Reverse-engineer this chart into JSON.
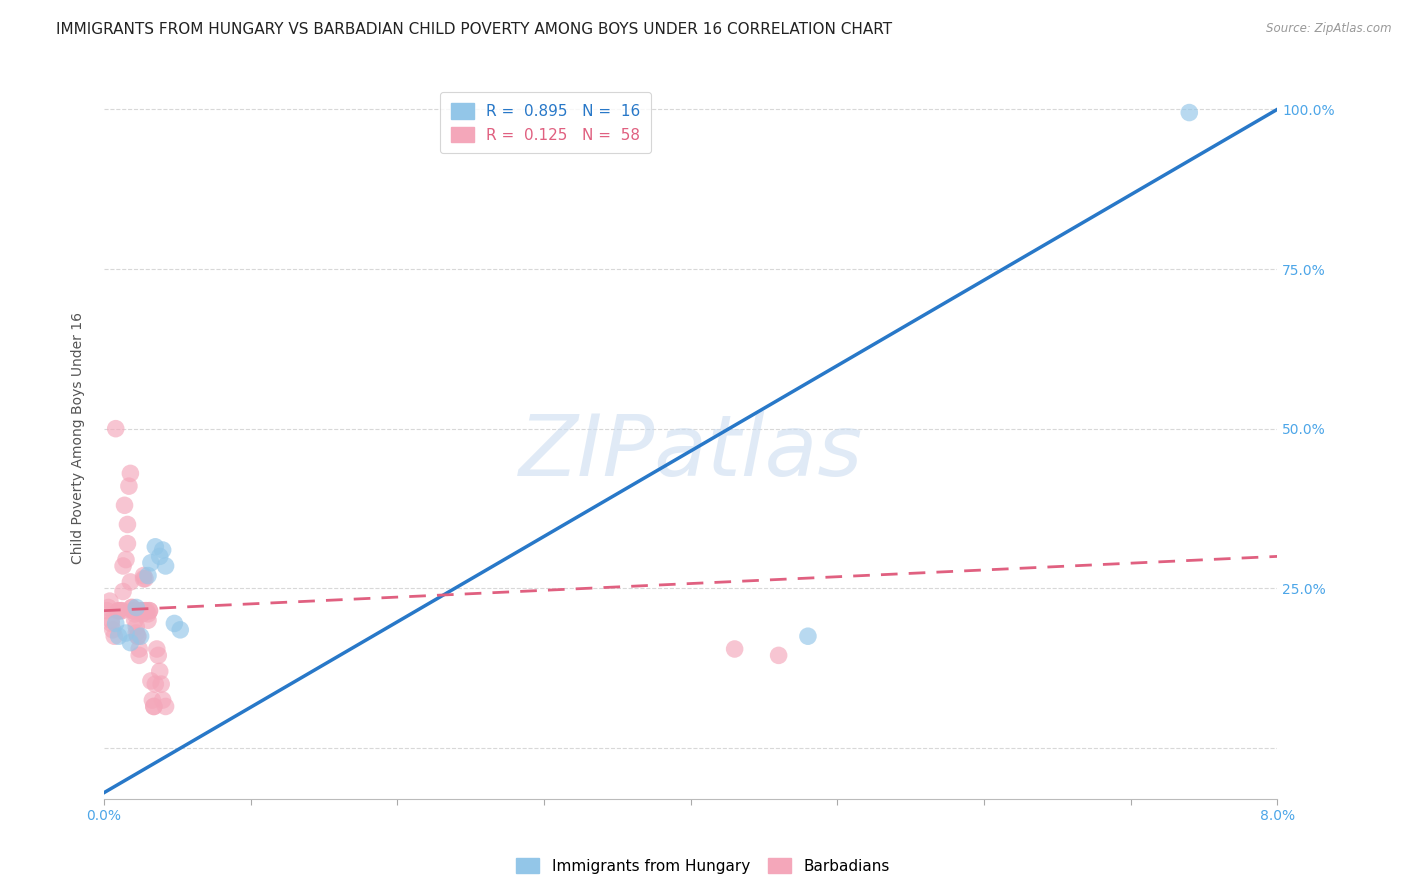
{
  "title": "IMMIGRANTS FROM HUNGARY VS BARBADIAN CHILD POVERTY AMONG BOYS UNDER 16 CORRELATION CHART",
  "source": "Source: ZipAtlas.com",
  "ylabel": "Child Poverty Among Boys Under 16",
  "x_ticks": [
    0.0,
    0.01,
    0.02,
    0.03,
    0.04,
    0.05,
    0.06,
    0.07,
    0.08
  ],
  "x_tick_labels": [
    "0.0%",
    "",
    "",
    "",
    "",
    "",
    "",
    "",
    "8.0%"
  ],
  "y_ticks": [
    0.0,
    0.25,
    0.5,
    0.75,
    1.0
  ],
  "y_tick_labels_right": [
    "",
    "25.0%",
    "50.0%",
    "75.0%",
    "100.0%"
  ],
  "xlim": [
    0.0,
    0.08
  ],
  "ylim": [
    -0.08,
    1.05
  ],
  "legend_hungary": "Immigrants from Hungary",
  "legend_barbadians": "Barbadians",
  "r_hungary": "0.895",
  "n_hungary": "16",
  "r_barbadians": "0.125",
  "n_barbadians": "58",
  "blue_color": "#93c6e8",
  "pink_color": "#f4a7ba",
  "blue_line_color": "#2878c8",
  "pink_line_color": "#e06080",
  "watermark": "ZIPatlas",
  "hungary_points": [
    [
      0.0008,
      0.195
    ],
    [
      0.001,
      0.175
    ],
    [
      0.0015,
      0.18
    ],
    [
      0.0018,
      0.165
    ],
    [
      0.0022,
      0.22
    ],
    [
      0.0025,
      0.175
    ],
    [
      0.003,
      0.27
    ],
    [
      0.0032,
      0.29
    ],
    [
      0.0035,
      0.315
    ],
    [
      0.0038,
      0.3
    ],
    [
      0.004,
      0.31
    ],
    [
      0.0042,
      0.285
    ],
    [
      0.0048,
      0.195
    ],
    [
      0.0052,
      0.185
    ],
    [
      0.048,
      0.175
    ],
    [
      0.074,
      0.995
    ]
  ],
  "barbadian_points": [
    [
      0.0002,
      0.215
    ],
    [
      0.0003,
      0.22
    ],
    [
      0.0004,
      0.23
    ],
    [
      0.0005,
      0.2
    ],
    [
      0.0005,
      0.195
    ],
    [
      0.0006,
      0.185
    ],
    [
      0.0007,
      0.175
    ],
    [
      0.0008,
      0.5
    ],
    [
      0.001,
      0.215
    ],
    [
      0.001,
      0.215
    ],
    [
      0.0012,
      0.215
    ],
    [
      0.0012,
      0.215
    ],
    [
      0.0013,
      0.285
    ],
    [
      0.0013,
      0.245
    ],
    [
      0.0014,
      0.38
    ],
    [
      0.0015,
      0.295
    ],
    [
      0.0016,
      0.35
    ],
    [
      0.0016,
      0.32
    ],
    [
      0.0017,
      0.41
    ],
    [
      0.0018,
      0.43
    ],
    [
      0.0018,
      0.26
    ],
    [
      0.0019,
      0.22
    ],
    [
      0.0019,
      0.22
    ],
    [
      0.002,
      0.215
    ],
    [
      0.002,
      0.215
    ],
    [
      0.0021,
      0.21
    ],
    [
      0.0021,
      0.2
    ],
    [
      0.0022,
      0.19
    ],
    [
      0.0022,
      0.18
    ],
    [
      0.0023,
      0.175
    ],
    [
      0.0023,
      0.175
    ],
    [
      0.0024,
      0.155
    ],
    [
      0.0024,
      0.145
    ],
    [
      0.0025,
      0.215
    ],
    [
      0.0026,
      0.215
    ],
    [
      0.0026,
      0.21
    ],
    [
      0.0027,
      0.265
    ],
    [
      0.0027,
      0.27
    ],
    [
      0.0028,
      0.265
    ],
    [
      0.0028,
      0.215
    ],
    [
      0.0029,
      0.215
    ],
    [
      0.003,
      0.21
    ],
    [
      0.003,
      0.2
    ],
    [
      0.0031,
      0.215
    ],
    [
      0.0031,
      0.215
    ],
    [
      0.0032,
      0.105
    ],
    [
      0.0033,
      0.075
    ],
    [
      0.0034,
      0.065
    ],
    [
      0.0034,
      0.065
    ],
    [
      0.0035,
      0.1
    ],
    [
      0.0036,
      0.155
    ],
    [
      0.0037,
      0.145
    ],
    [
      0.0038,
      0.12
    ],
    [
      0.0039,
      0.1
    ],
    [
      0.004,
      0.075
    ],
    [
      0.0042,
      0.065
    ],
    [
      0.043,
      0.155
    ],
    [
      0.046,
      0.145
    ]
  ],
  "background_color": "#ffffff",
  "grid_color": "#d8d8d8",
  "title_fontsize": 11,
  "axis_label_fontsize": 10,
  "tick_fontsize": 10,
  "legend_fontsize": 11
}
